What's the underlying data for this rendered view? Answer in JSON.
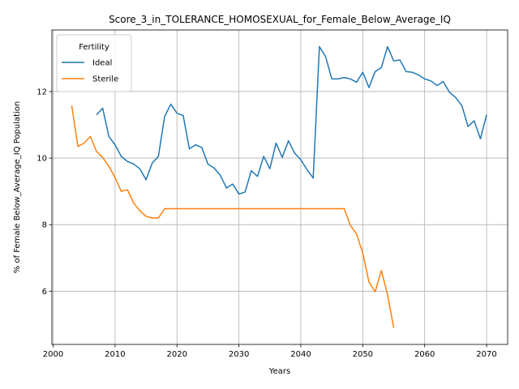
{
  "chart_data": {
    "type": "line",
    "title": "Score_3_in_TOLERANCE_HOMOSEXUAL_for_Female_Below_Average_IQ",
    "xlabel": "Years",
    "ylabel": "% of Female Below_Average_IQ Population",
    "xlim": [
      1999.8,
      2073.4
    ],
    "ylim": [
      4.4,
      13.85
    ],
    "xticks": [
      2000,
      2010,
      2020,
      2030,
      2040,
      2050,
      2060,
      2070
    ],
    "yticks": [
      6,
      8,
      10,
      12
    ],
    "grid": true,
    "legend": {
      "title": "Fertility",
      "position": "upper-left"
    },
    "series": [
      {
        "name": "Ideal",
        "color": "#1f77b4",
        "x": [
          2007,
          2008,
          2009,
          2010,
          2011,
          2012,
          2013,
          2014,
          2015,
          2016,
          2017,
          2018,
          2019,
          2020,
          2021,
          2022,
          2023,
          2024,
          2025,
          2026,
          2027,
          2028,
          2029,
          2030,
          2031,
          2032,
          2033,
          2034,
          2035,
          2036,
          2037,
          2038,
          2039,
          2040,
          2041,
          2042,
          2043,
          2044,
          2045,
          2046,
          2047,
          2048,
          2049,
          2050,
          2051,
          2052,
          2053,
          2054,
          2055,
          2056,
          2057,
          2058,
          2059,
          2060,
          2061,
          2062,
          2063,
          2064,
          2065,
          2066,
          2067,
          2068,
          2069,
          2070
        ],
        "y": [
          11.3,
          11.5,
          10.65,
          10.4,
          10.05,
          9.9,
          9.82,
          9.68,
          9.35,
          9.85,
          10.05,
          11.25,
          11.62,
          11.35,
          11.28,
          10.28,
          10.4,
          10.32,
          9.82,
          9.7,
          9.48,
          9.1,
          9.22,
          8.92,
          8.98,
          9.62,
          9.45,
          10.05,
          9.68,
          10.45,
          10.02,
          10.52,
          10.15,
          9.95,
          9.65,
          9.4,
          13.35,
          13.05,
          12.38,
          12.38,
          12.42,
          12.38,
          12.28,
          12.58,
          12.12,
          12.6,
          12.72,
          13.35,
          12.92,
          12.95,
          12.6,
          12.58,
          12.5,
          12.38,
          12.32,
          12.18,
          12.3,
          11.98,
          11.82,
          11.58,
          10.95,
          11.12,
          10.58,
          11.3
        ]
      },
      {
        "name": "Sterile",
        "color": "#ff7f0e",
        "x": [
          2003,
          2004,
          2005,
          2006,
          2007,
          2008,
          2009,
          2010,
          2011,
          2012,
          2013,
          2014,
          2015,
          2016,
          2017,
          2018,
          2019,
          2020,
          2021,
          2022,
          2023,
          2024,
          2025,
          2026,
          2027,
          2028,
          2029,
          2030,
          2031,
          2032,
          2033,
          2034,
          2035,
          2036,
          2037,
          2038,
          2039,
          2040,
          2041,
          2042,
          2043,
          2044,
          2045,
          2046,
          2047,
          2048,
          2049,
          2050,
          2051,
          2052,
          2053,
          2054,
          2055
        ],
        "y": [
          11.58,
          10.35,
          10.45,
          10.65,
          10.2,
          10.02,
          9.75,
          9.42,
          9.0,
          9.05,
          8.65,
          8.42,
          8.25,
          8.2,
          8.2,
          8.48,
          8.48,
          8.48,
          8.48,
          8.48,
          8.48,
          8.48,
          8.48,
          8.48,
          8.48,
          8.48,
          8.48,
          8.48,
          8.48,
          8.48,
          8.48,
          8.48,
          8.48,
          8.48,
          8.48,
          8.48,
          8.48,
          8.48,
          8.48,
          8.48,
          8.48,
          8.48,
          8.48,
          8.48,
          8.48,
          7.98,
          7.72,
          7.15,
          6.28,
          5.98,
          6.62,
          5.9,
          4.9
        ]
      }
    ]
  }
}
